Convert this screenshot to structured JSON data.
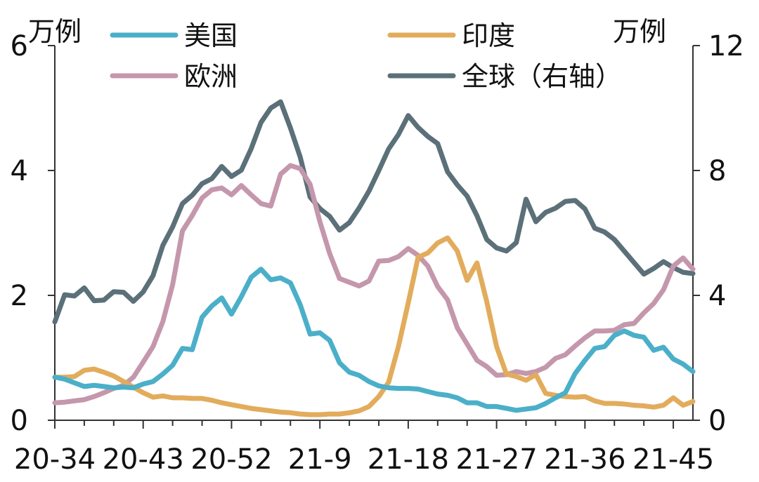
{
  "chart_data": {
    "type": "line",
    "left_axis": {
      "unit": "万例",
      "ylim": [
        0,
        6
      ],
      "ticks": [
        0,
        2,
        4,
        6
      ]
    },
    "right_axis": {
      "unit": "万例",
      "ylim": [
        0,
        12
      ],
      "ticks": [
        0,
        4,
        8,
        12
      ]
    },
    "x_tick_labels": [
      "20-34",
      "20-43",
      "20-52",
      "21-9",
      "21-18",
      "21-27",
      "21-36",
      "21-45"
    ],
    "x_tick_positions": [
      0,
      9,
      18,
      27,
      36,
      45,
      54,
      63
    ],
    "x_range": [
      0,
      65
    ],
    "grid": false,
    "legend_position": "top",
    "series": [
      {
        "name": "美国",
        "axis": "left",
        "color": "#4bafc9",
        "values": [
          0.69,
          0.66,
          0.6,
          0.54,
          0.56,
          0.54,
          0.52,
          0.53,
          0.52,
          0.58,
          0.62,
          0.74,
          0.88,
          1.15,
          1.13,
          1.65,
          1.83,
          1.96,
          1.7,
          1.98,
          2.29,
          2.42,
          2.25,
          2.28,
          2.2,
          1.85,
          1.38,
          1.4,
          1.28,
          0.92,
          0.77,
          0.72,
          0.62,
          0.55,
          0.52,
          0.51,
          0.51,
          0.5,
          0.46,
          0.42,
          0.4,
          0.36,
          0.28,
          0.28,
          0.22,
          0.22,
          0.19,
          0.16,
          0.18,
          0.2,
          0.27,
          0.36,
          0.44,
          0.75,
          0.96,
          1.15,
          1.18,
          1.36,
          1.43,
          1.36,
          1.33,
          1.12,
          1.17,
          0.98,
          0.9,
          0.78
        ]
      },
      {
        "name": "欧洲",
        "axis": "left",
        "color": "#c497ac",
        "values": [
          0.28,
          0.29,
          0.31,
          0.33,
          0.38,
          0.44,
          0.51,
          0.56,
          0.69,
          0.93,
          1.18,
          1.58,
          2.17,
          3.03,
          3.28,
          3.56,
          3.69,
          3.72,
          3.61,
          3.76,
          3.61,
          3.47,
          3.43,
          3.94,
          4.08,
          4.03,
          3.78,
          3.18,
          2.67,
          2.27,
          2.21,
          2.15,
          2.23,
          2.55,
          2.56,
          2.62,
          2.75,
          2.64,
          2.47,
          2.14,
          1.93,
          1.48,
          1.22,
          0.96,
          0.86,
          0.72,
          0.73,
          0.78,
          0.75,
          0.78,
          0.85,
          0.99,
          1.05,
          1.19,
          1.32,
          1.43,
          1.43,
          1.44,
          1.53,
          1.55,
          1.72,
          1.87,
          2.09,
          2.47,
          2.6,
          2.42
        ]
      },
      {
        "name": "印度",
        "axis": "left",
        "color": "#e2ac5c",
        "values": [
          0.69,
          0.69,
          0.7,
          0.8,
          0.82,
          0.77,
          0.71,
          0.62,
          0.53,
          0.44,
          0.37,
          0.39,
          0.36,
          0.36,
          0.35,
          0.35,
          0.32,
          0.28,
          0.25,
          0.22,
          0.19,
          0.17,
          0.15,
          0.13,
          0.12,
          0.1,
          0.09,
          0.09,
          0.1,
          0.1,
          0.12,
          0.15,
          0.22,
          0.38,
          0.61,
          1.18,
          1.88,
          2.61,
          2.68,
          2.84,
          2.92,
          2.71,
          2.24,
          2.52,
          1.9,
          1.18,
          0.74,
          0.7,
          0.64,
          0.73,
          0.43,
          0.4,
          0.38,
          0.37,
          0.38,
          0.31,
          0.27,
          0.27,
          0.26,
          0.24,
          0.23,
          0.21,
          0.24,
          0.36,
          0.24,
          0.3
        ]
      },
      {
        "name": "全球（右轴）",
        "axis": "right",
        "color": "#5b7079",
        "values": [
          3.15,
          4.02,
          3.98,
          4.24,
          3.83,
          3.85,
          4.12,
          4.1,
          3.81,
          4.11,
          4.63,
          5.6,
          6.19,
          6.94,
          7.21,
          7.58,
          7.74,
          8.13,
          7.81,
          8.01,
          8.7,
          9.54,
          10.0,
          10.2,
          9.36,
          8.43,
          7.15,
          6.78,
          6.53,
          6.09,
          6.33,
          6.8,
          7.34,
          8.0,
          8.69,
          9.15,
          9.76,
          9.38,
          9.09,
          8.86,
          7.96,
          7.54,
          7.18,
          6.55,
          5.79,
          5.52,
          5.42,
          5.69,
          7.08,
          6.36,
          6.66,
          6.79,
          7.01,
          7.04,
          6.77,
          6.15,
          6.03,
          5.79,
          5.42,
          5.05,
          4.68,
          4.86,
          5.08,
          4.89,
          4.74,
          4.7
        ]
      }
    ]
  }
}
